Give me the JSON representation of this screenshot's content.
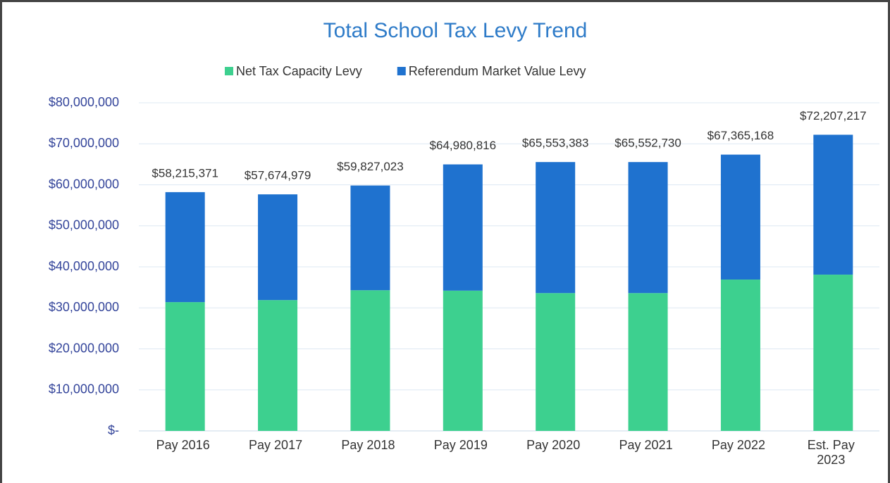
{
  "chart_data": {
    "type": "stacked_bar",
    "title": "Total School Tax Levy Trend",
    "categories": [
      "Pay 2016",
      "Pay 2017",
      "Pay 2018",
      "Pay 2019",
      "Pay 2020",
      "Pay 2021",
      "Pay 2022",
      "Est. Pay 2023"
    ],
    "series": [
      {
        "name": "Net Tax Capacity Levy",
        "color": "#3dd08f",
        "values": [
          31400000,
          31900000,
          34300000,
          34200000,
          33600000,
          33600000,
          36900000,
          38100000
        ]
      },
      {
        "name": "Referendum Market Value Levy",
        "color": "#1f72cf",
        "values": [
          26815371,
          25774979,
          25527023,
          30780816,
          31953383,
          31952730,
          30465168,
          34107217
        ]
      }
    ],
    "totals": [
      58215371,
      57674979,
      59827023,
      64980816,
      65553383,
      65552730,
      67365168,
      72207217
    ],
    "total_labels": [
      "$58,215,371",
      "$57,674,979",
      "$59,827,023",
      "$64,980,816",
      "$65,553,383",
      "$65,552,730",
      "$67,365,168",
      "$72,207,217"
    ],
    "ylim": [
      0,
      80000000
    ],
    "yticks": [
      {
        "value": 0,
        "label": "$-"
      },
      {
        "value": 10000000,
        "label": "$10,000,000"
      },
      {
        "value": 20000000,
        "label": "$20,000,000"
      },
      {
        "value": 30000000,
        "label": "$30,000,000"
      },
      {
        "value": 40000000,
        "label": "$40,000,000"
      },
      {
        "value": 50000000,
        "label": "$50,000,000"
      },
      {
        "value": 60000000,
        "label": "$60,000,000"
      },
      {
        "value": 70000000,
        "label": "$70,000,000"
      },
      {
        "value": 80000000,
        "label": "$80,000,000"
      }
    ],
    "grid": true,
    "legend": "top"
  }
}
